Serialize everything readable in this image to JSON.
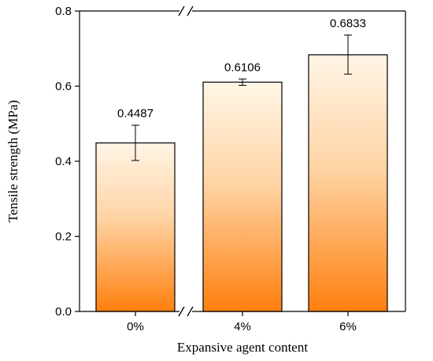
{
  "chart_data": {
    "type": "bar",
    "xlabel": "Expansive agent content",
    "ylabel": "Tensile strength (MPa)",
    "categories": [
      "0%",
      "4%",
      "6%"
    ],
    "values": [
      0.4487,
      0.6106,
      0.6833
    ],
    "value_labels": [
      "0.4487",
      "0.6106",
      "0.6833"
    ],
    "error_low": [
      0.402,
      0.602,
      0.632
    ],
    "error_high": [
      0.496,
      0.619,
      0.736
    ],
    "ylim": [
      0,
      0.8
    ],
    "yticks": [
      0.0,
      0.2,
      0.4,
      0.6,
      0.8
    ],
    "ytick_labels": [
      "0.0",
      "0.2",
      "0.4",
      "0.6",
      "0.8"
    ],
    "axis_break_marks": "//",
    "grid": false,
    "colors": {
      "bar_top": "#fff5e6",
      "bar_bottom": "#ff7f0e",
      "bar_edge": "#000000"
    }
  }
}
